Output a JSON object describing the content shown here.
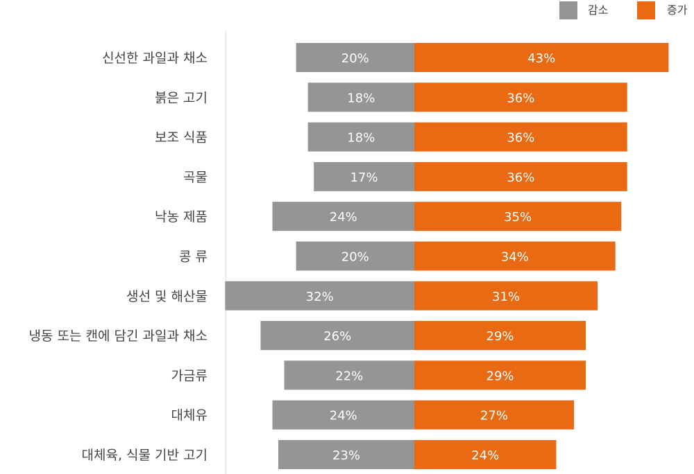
{
  "chart_data": {
    "type": "bar",
    "orientation": "horizontal-diverging",
    "categories": [
      "신선한 과일과 채소",
      "붉은 고기",
      "보조 식품",
      "곡물",
      "낙농 제품",
      "콩 류",
      "생선 및 해산물",
      "냉동 또는 캔에 담긴 과일과 채소",
      "가금류",
      "대체유",
      "대체육, 식물 기반 고기"
    ],
    "series": [
      {
        "name": "감소",
        "color": "#959595",
        "values": [
          20,
          18,
          18,
          17,
          24,
          20,
          32,
          26,
          22,
          24,
          23
        ]
      },
      {
        "name": "증가",
        "color": "#e96a13",
        "values": [
          43,
          36,
          36,
          36,
          35,
          34,
          31,
          29,
          29,
          27,
          24
        ]
      }
    ],
    "value_suffix": "%",
    "legend_position": "top-right",
    "grid": false
  }
}
